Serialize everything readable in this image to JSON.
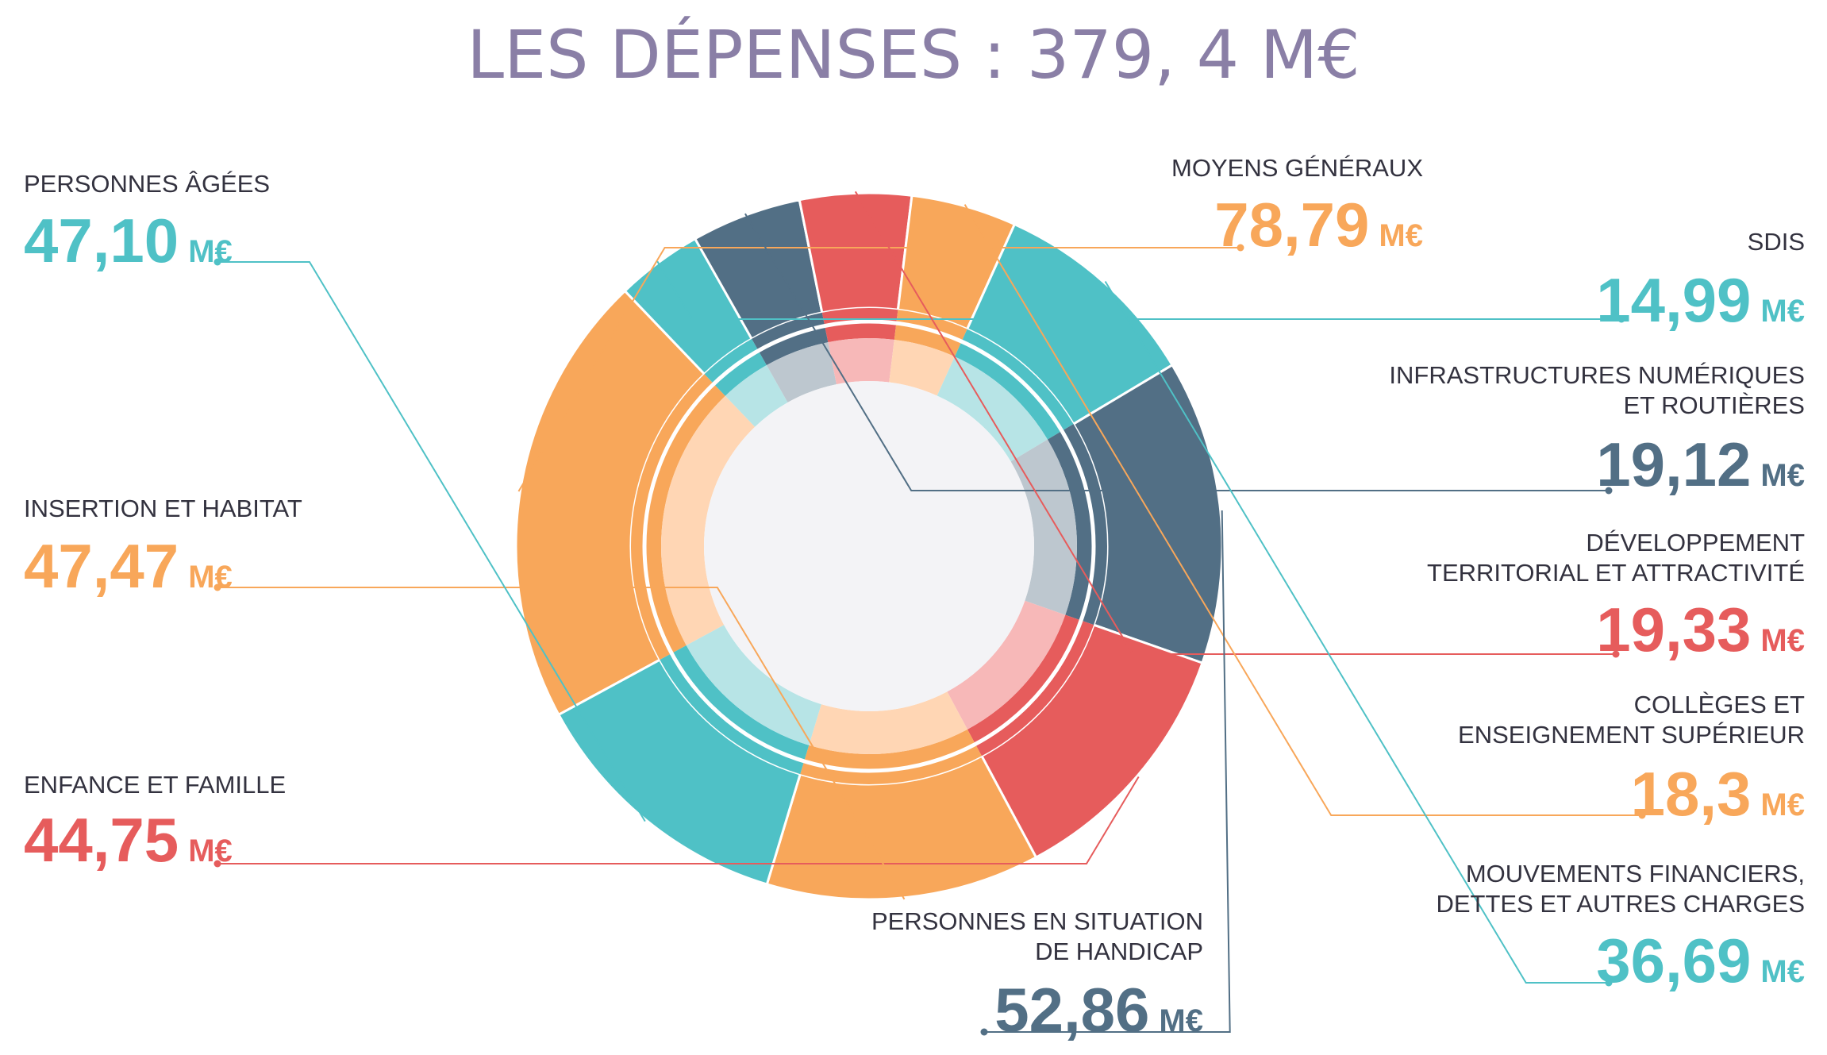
{
  "title": "LES DÉPENSES : 379, 4 M€",
  "chart_data": {
    "type": "pie",
    "title": "LES DÉPENSES : 379, 4 M€",
    "unit": "M€",
    "slices": [
      {
        "label": "MOYENS GÉNÉRAUX",
        "lines": [
          "MOYENS GÉNÉRAUX"
        ],
        "value": 78.79,
        "display": "78,79",
        "color": "#f8a75a",
        "inner_color": "#ffd6b4"
      },
      {
        "label": "SDIS",
        "lines": [
          "SDIS"
        ],
        "value": 14.99,
        "display": "14,99",
        "color": "#4fc1c6",
        "inner_color": "#b7e4e6"
      },
      {
        "label": "INFRASTRUCTURES NUMÉRIQUES ET ROUTIÈRES",
        "lines": [
          "INFRASTRUCTURES NUMÉRIQUES",
          "ET ROUTIÈRES"
        ],
        "value": 19.12,
        "display": "19,12",
        "color": "#526f85",
        "inner_color": "#bdc7cf"
      },
      {
        "label": "DÉVELOPPEMENT TERRITORIAL ET ATTRACTIVITÉ",
        "lines": [
          "DÉVELOPPEMENT",
          "TERRITORIAL ET ATTRACTIVITÉ"
        ],
        "value": 19.33,
        "display": "19,33",
        "color": "#e65c5c",
        "inner_color": "#f7b8b8"
      },
      {
        "label": "COLLÈGES ET ENSEIGNEMENT SUPÉRIEUR",
        "lines": [
          "COLLÈGES ET",
          "ENSEIGNEMENT SUPÉRIEUR"
        ],
        "value": 18.3,
        "display": "18,3",
        "color": "#f8a75a",
        "inner_color": "#ffd6b4"
      },
      {
        "label": "MOUVEMENTS FINANCIERS, DETTES ET AUTRES CHARGES",
        "lines": [
          "MOUVEMENTS FINANCIERS,",
          "DETTES ET AUTRES CHARGES"
        ],
        "value": 36.69,
        "display": "36,69",
        "color": "#4fc1c6",
        "inner_color": "#b7e4e6"
      },
      {
        "label": "PERSONNES EN SITUATION DE HANDICAP",
        "lines": [
          "PERSONNES EN SITUATION",
          "DE HANDICAP"
        ],
        "value": 52.86,
        "display": "52,86",
        "color": "#526f85",
        "inner_color": "#bdc7cf"
      },
      {
        "label": "ENFANCE ET FAMILLE",
        "lines": [
          "ENFANCE ET FAMILLE"
        ],
        "value": 44.75,
        "display": "44,75",
        "color": "#e65c5c",
        "inner_color": "#f7b8b8"
      },
      {
        "label": "INSERTION ET HABITAT",
        "lines": [
          "INSERTION ET HABITAT"
        ],
        "value": 47.47,
        "display": "47,47",
        "color": "#f8a75a",
        "inner_color": "#ffd6b4"
      },
      {
        "label": "PERSONNES ÂGÉES",
        "lines": [
          "PERSONNES ÂGÉES"
        ],
        "value": 47.1,
        "display": "47,10",
        "color": "#4fc1c6",
        "inner_color": "#b7e4e6"
      }
    ],
    "center_color": "#f3f3f6",
    "title_color": "#8a7fa6"
  }
}
